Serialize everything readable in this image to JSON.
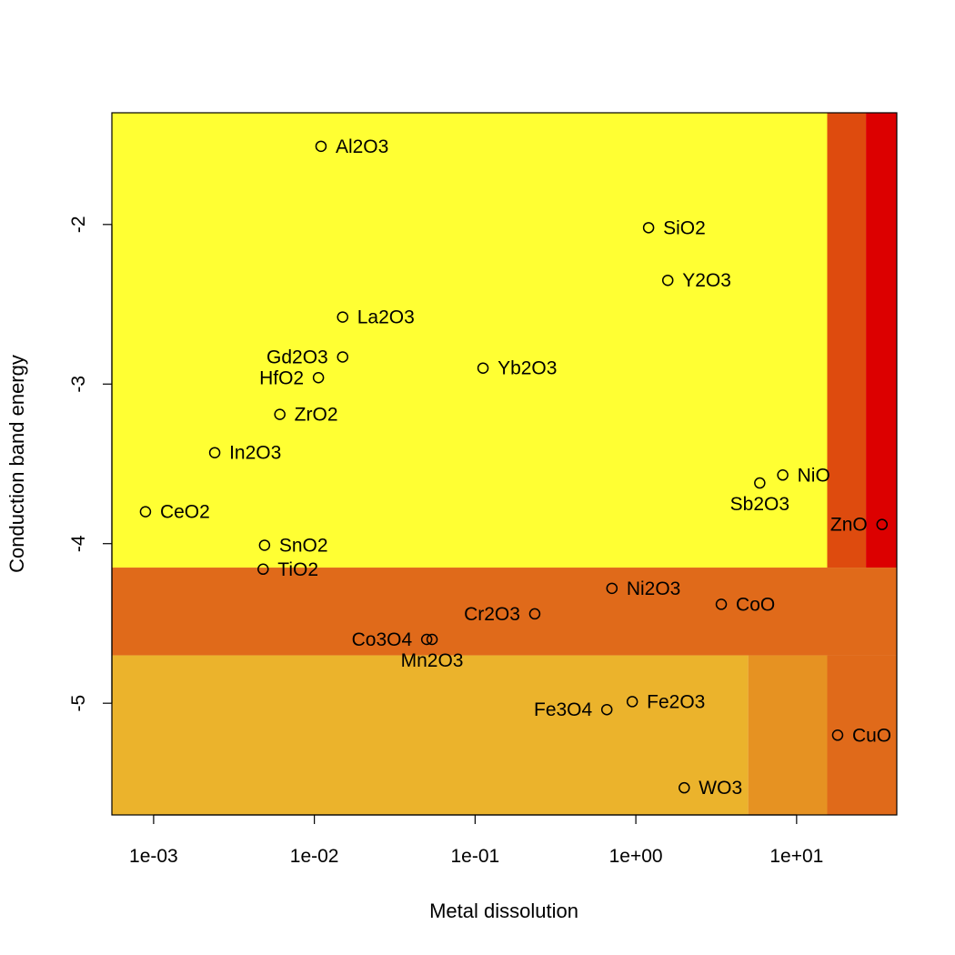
{
  "chart_data": {
    "type": "scatter",
    "xlabel": "Metal dissolution",
    "ylabel": "Conduction band energy",
    "x_scale": "log10",
    "xlim": [
      0.00055,
      42
    ],
    "ylim": [
      -5.7,
      -1.3
    ],
    "x_ticks": [
      {
        "value": 0.001,
        "label": "1e-03"
      },
      {
        "value": 0.01,
        "label": "1e-02"
      },
      {
        "value": 0.1,
        "label": "1e-01"
      },
      {
        "value": 1,
        "label": "1e+00"
      },
      {
        "value": 10,
        "label": "1e+01"
      }
    ],
    "y_ticks": [
      {
        "value": -2,
        "label": "-2"
      },
      {
        "value": -3,
        "label": "-3"
      },
      {
        "value": -4,
        "label": "-4"
      },
      {
        "value": -5,
        "label": "-5"
      }
    ],
    "background_regions": [
      {
        "x": [
          0.00055,
          15.5
        ],
        "y": [
          -4.15,
          -1.3
        ],
        "color": "#FFFF33"
      },
      {
        "x": [
          15.5,
          27
        ],
        "y": [
          -4.15,
          -1.3
        ],
        "color": "#DE4B0E"
      },
      {
        "x": [
          27,
          42
        ],
        "y": [
          -4.15,
          -1.3
        ],
        "color": "#DC0000"
      },
      {
        "x": [
          0.00055,
          42
        ],
        "y": [
          -4.7,
          -4.15
        ],
        "color": "#E06A1A"
      },
      {
        "x": [
          0.00055,
          5
        ],
        "y": [
          -5.7,
          -4.7
        ],
        "color": "#EBB32C"
      },
      {
        "x": [
          5,
          15.5
        ],
        "y": [
          -5.7,
          -4.7
        ],
        "color": "#E69222"
      },
      {
        "x": [
          15.5,
          42
        ],
        "y": [
          -5.7,
          -4.7
        ],
        "color": "#E06A1A"
      }
    ],
    "points": [
      {
        "name": "Al2O3",
        "x": 0.011,
        "y": -1.51,
        "pos": "right"
      },
      {
        "name": "SiO2",
        "x": 1.2,
        "y": -2.02,
        "pos": "right"
      },
      {
        "name": "Y2O3",
        "x": 1.58,
        "y": -2.35,
        "pos": "right"
      },
      {
        "name": "La2O3",
        "x": 0.015,
        "y": -2.58,
        "pos": "right"
      },
      {
        "name": "Gd2O3",
        "x": 0.015,
        "y": -2.83,
        "pos": "left"
      },
      {
        "name": "HfO2",
        "x": 0.0106,
        "y": -2.96,
        "pos": "left"
      },
      {
        "name": "Yb2O3",
        "x": 0.112,
        "y": -2.9,
        "pos": "right"
      },
      {
        "name": "ZrO2",
        "x": 0.0061,
        "y": -3.19,
        "pos": "right"
      },
      {
        "name": "In2O3",
        "x": 0.0024,
        "y": -3.43,
        "pos": "right"
      },
      {
        "name": "CeO2",
        "x": 0.00089,
        "y": -3.8,
        "pos": "right"
      },
      {
        "name": "SnO2",
        "x": 0.0049,
        "y": -4.01,
        "pos": "right"
      },
      {
        "name": "TiO2",
        "x": 0.0048,
        "y": -4.16,
        "pos": "right"
      },
      {
        "name": "NiO",
        "x": 8.2,
        "y": -3.57,
        "pos": "right"
      },
      {
        "name": "Sb2O3",
        "x": 5.9,
        "y": -3.62,
        "pos": "below"
      },
      {
        "name": "ZnO",
        "x": 34,
        "y": -3.88,
        "pos": "left"
      },
      {
        "name": "Ni2O3",
        "x": 0.71,
        "y": -4.28,
        "pos": "right"
      },
      {
        "name": "CoO",
        "x": 3.4,
        "y": -4.38,
        "pos": "right"
      },
      {
        "name": "Cr2O3",
        "x": 0.235,
        "y": -4.44,
        "pos": "left"
      },
      {
        "name": "Co3O4",
        "x": 0.05,
        "y": -4.6,
        "pos": "left"
      },
      {
        "name": "Mn2O3",
        "x": 0.054,
        "y": -4.6,
        "pos": "below"
      },
      {
        "name": "Fe2O3",
        "x": 0.95,
        "y": -4.99,
        "pos": "right"
      },
      {
        "name": "Fe3O4",
        "x": 0.66,
        "y": -5.04,
        "pos": "left"
      },
      {
        "name": "CuO",
        "x": 18,
        "y": -5.2,
        "pos": "right"
      },
      {
        "name": "WO3",
        "x": 2.0,
        "y": -5.53,
        "pos": "right"
      }
    ]
  }
}
